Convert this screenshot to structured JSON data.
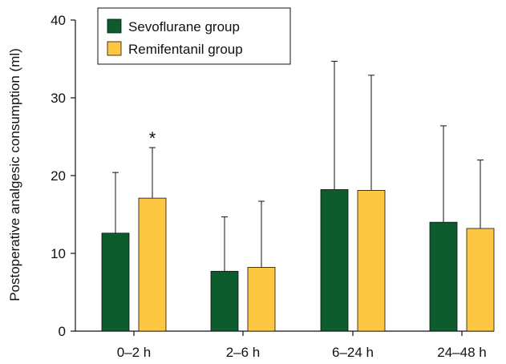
{
  "chart_data": {
    "type": "bar",
    "categories": [
      "0–2 h",
      "2–6 h",
      "6–24 h",
      "24–48 h"
    ],
    "series": [
      {
        "name": "Sevoflurane group",
        "values": [
          12.6,
          7.7,
          18.2,
          14.0
        ],
        "error_upper": [
          20.4,
          14.7,
          34.7,
          26.4
        ],
        "color": "#0d5c2e"
      },
      {
        "name": "Remifentanil group",
        "values": [
          17.1,
          8.2,
          18.1,
          13.2
        ],
        "error_upper": [
          23.6,
          16.7,
          32.9,
          22.0
        ],
        "color": "#fdc741"
      }
    ],
    "ylabel": "Postoperative analgesic consumption (ml)",
    "xlabel": "",
    "ylim": [
      0,
      40
    ],
    "yticks": [
      "0",
      "10",
      "20",
      "30",
      "40"
    ],
    "legend": {
      "position": "top-left",
      "boxed": true
    },
    "annotations": [
      {
        "text": "*",
        "category": "0–2 h",
        "series": "Remifentanil group"
      }
    ],
    "grid": false
  }
}
